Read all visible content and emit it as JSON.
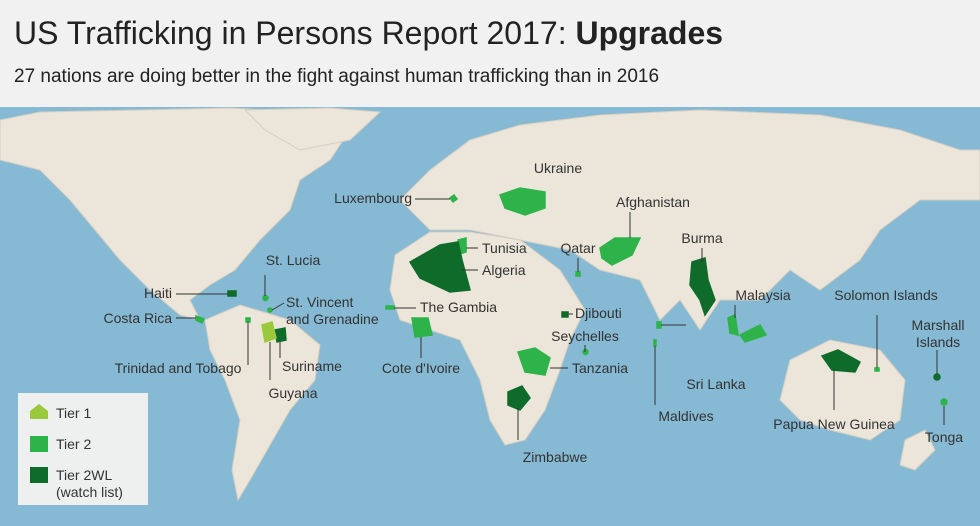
{
  "header": {
    "title": "US Trafficking in Persons Report 2017:",
    "title_bold": "Upgrades",
    "subtitle": "27 nations are doing better in the fight against human trafficking than in 2016"
  },
  "legend": [
    {
      "label": [
        "Tier 1"
      ],
      "color": "#9bc93c"
    },
    {
      "label": [
        "Tier 2"
      ],
      "color": "#2db34a"
    },
    {
      "label": [
        "Tier 2WL",
        "(watch list)"
      ],
      "color": "#0f6b2a"
    }
  ],
  "countries": [
    {
      "label": [
        "Ukraine"
      ],
      "color": "#2db34a"
    },
    {
      "label": [
        "Luxembourg"
      ],
      "color": "#2db34a"
    },
    {
      "label": [
        "Afghanistan"
      ],
      "color": "#2db34a"
    },
    {
      "label": [
        "Tunisia"
      ],
      "color": "#2db34a"
    },
    {
      "label": [
        "Algeria"
      ],
      "color": "#0f6b2a"
    },
    {
      "label": [
        "Qatar"
      ],
      "color": "#2db34a"
    },
    {
      "label": [
        "Burma"
      ],
      "color": "#0f6b2a"
    },
    {
      "label": [
        "St. Lucia"
      ],
      "color": "#2db34a"
    },
    {
      "label": [
        "Haiti"
      ],
      "color": "#0f6b2a"
    },
    {
      "label": [
        "St. Vincent",
        "and Grenadine"
      ],
      "color": "#2db34a"
    },
    {
      "label": [
        "The Gambia"
      ],
      "color": "#2db34a"
    },
    {
      "label": [
        "Djibouti"
      ],
      "color": "#0f6b2a"
    },
    {
      "label": [
        "Malaysia"
      ],
      "color": "#2db34a"
    },
    {
      "label": [
        "Solomon Islands"
      ],
      "color": "#2db34a"
    },
    {
      "label": [
        "Costa Rica"
      ],
      "color": "#2db34a"
    },
    {
      "label": [
        "Seychelles"
      ],
      "color": "#2db34a"
    },
    {
      "label": [
        "Marshall",
        "Islands"
      ],
      "color": "#0f6b2a"
    },
    {
      "label": [
        "Trinidad and Tobago"
      ],
      "color": "#2db34a"
    },
    {
      "label": [
        "Suriname"
      ],
      "color": "#0f6b2a"
    },
    {
      "label": [
        "Cote d'Ivoire"
      ],
      "color": "#2db34a"
    },
    {
      "label": [
        "Tanzania"
      ],
      "color": "#2db34a"
    },
    {
      "label": [
        "Sri Lanka"
      ],
      "color": "#2db34a"
    },
    {
      "label": [
        "Guyana"
      ],
      "color": "#9bc93c"
    },
    {
      "label": [
        "Maldives"
      ],
      "color": "#2db34a"
    },
    {
      "label": [
        "Papua New Guinea"
      ],
      "color": "#0f6b2a"
    },
    {
      "label": [
        "Tonga"
      ],
      "color": "#2db34a"
    },
    {
      "label": [
        "Zimbabwe"
      ],
      "color": "#0f6b2a"
    }
  ]
}
